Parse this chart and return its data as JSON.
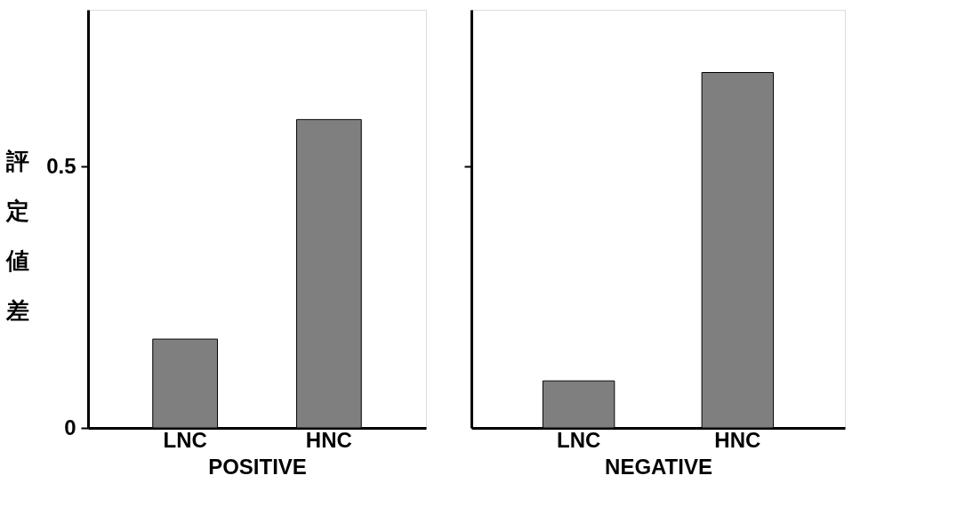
{
  "chart_data": [
    {
      "type": "bar",
      "categories": [
        "LNC",
        "HNC"
      ],
      "values": [
        0.17,
        0.59
      ],
      "color": "#7f7f7f",
      "xlabel": "POSITIVE",
      "ylabel": "評定値差",
      "ylim": [
        0,
        0.8
      ],
      "yticks": [
        0,
        0.5
      ],
      "grid": false
    },
    {
      "type": "bar",
      "categories": [
        "LNC",
        "HNC"
      ],
      "values": [
        0.09,
        0.68
      ],
      "color": "#7f7f7f",
      "xlabel": "NEGATIVE",
      "ylim": [
        0,
        0.8
      ],
      "yticks": [
        {
          "value": 0.5,
          "label": null
        }
      ],
      "tick_labels": "x",
      "grid": false
    }
  ]
}
